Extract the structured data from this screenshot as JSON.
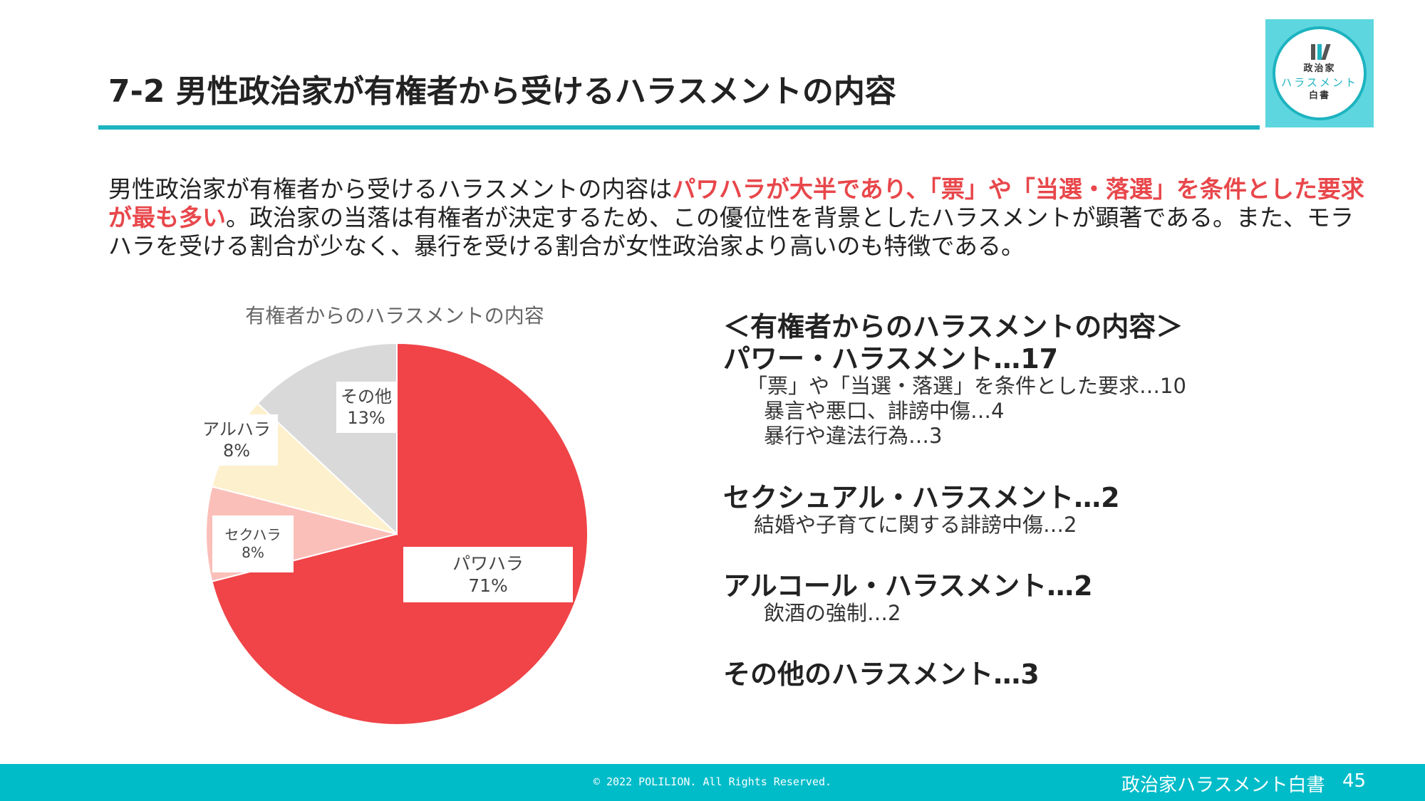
{
  "header": {
    "title": "7-2 男性政治家が有権者から受けるハラスメントの内容",
    "logo": {
      "line1": "政治家",
      "line2": "ハラスメント",
      "line3": "白書"
    }
  },
  "intro": {
    "part1": "男性政治家が有権者から受けるハラスメントの内容は",
    "highlight": "パワハラが大半であり、「票」や「当選・落選」を条件とした要求が最も多い",
    "part2": "。政治家の当落は有権者が決定するため、この優位性を背景としたハラスメントが顕著である。また、モラハラを受ける割合が少なく、暴行を受ける割合が女性政治家より高いのも特徴である。"
  },
  "chart_data": {
    "type": "pie",
    "title": "有権者からのハラスメントの内容",
    "slices": [
      {
        "label": "パワハラ",
        "value": 71,
        "display": "71%",
        "color": "#f04448"
      },
      {
        "label": "セクハラ",
        "value": 8,
        "display": "8%",
        "color": "#fbbfb9"
      },
      {
        "label": "アルハラ",
        "value": 8,
        "display": "8%",
        "color": "#fdf0cc"
      },
      {
        "label": "その他",
        "value": 13,
        "display": "13%",
        "color": "#d9d9d9"
      }
    ]
  },
  "breakdown": {
    "heading": "＜有権者からのハラスメントの内容＞",
    "power": {
      "label": "パワー・ハラスメント…17",
      "items": [
        "「票」や「当選・落選」を条件とした要求…10",
        "暴言や悪口、誹謗中傷…4",
        "暴行や違法行為…3"
      ]
    },
    "sexual": {
      "label": "セクシュアル・ハラスメント…2",
      "items": [
        "結婚や子育てに関する誹謗中傷…2"
      ]
    },
    "alcohol": {
      "label": "アルコール・ハラスメント…2",
      "items": [
        "飲酒の強制…2"
      ]
    },
    "other": {
      "label": "その他のハラスメント…3"
    }
  },
  "footer": {
    "copyright": "© 2022 POLILION. All Rights Reserved.",
    "brand": "政治家ハラスメント白書",
    "page": "45"
  }
}
